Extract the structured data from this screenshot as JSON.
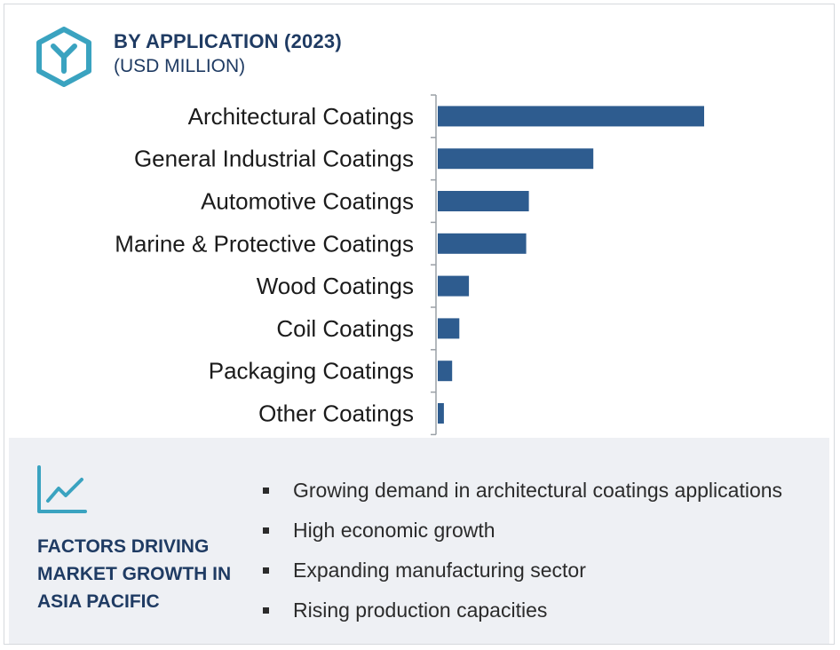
{
  "header": {
    "title": "BY APPLICATION (2023)",
    "subtitle": "(USD MILLION)",
    "logo_icon": "hexagon-y-logo-icon"
  },
  "colors": {
    "bar": "#2e5c8f",
    "title": "#1f3b63",
    "accent_teal": "#3aa3c0",
    "panel_bg": "#eef0f4"
  },
  "chart_data": {
    "type": "bar",
    "orientation": "horizontal",
    "categories": [
      "Architectural Coatings",
      "General Industrial Coatings",
      "Automotive Coatings",
      "Marine & Protective Coatings",
      "Wood Coatings",
      "Coil Coatings",
      "Packaging Coatings",
      "Other Coatings"
    ],
    "values": [
      100,
      58.4,
      34.2,
      33.2,
      11.7,
      8.1,
      5.4,
      2.3
    ],
    "xlim": [
      0,
      100
    ],
    "title": "BY APPLICATION (2023)",
    "xlabel": "",
    "ylabel": "",
    "value_axis_labels": false,
    "grid": false
  },
  "factors": {
    "icon": "trend-chart-icon",
    "title": "FACTORS DRIVING MARKET GROWTH IN ASIA PACIFIC",
    "items": [
      "Growing demand in architectural coatings applications",
      "High economic growth",
      "Expanding manufacturing sector",
      "Rising production capacities"
    ]
  }
}
